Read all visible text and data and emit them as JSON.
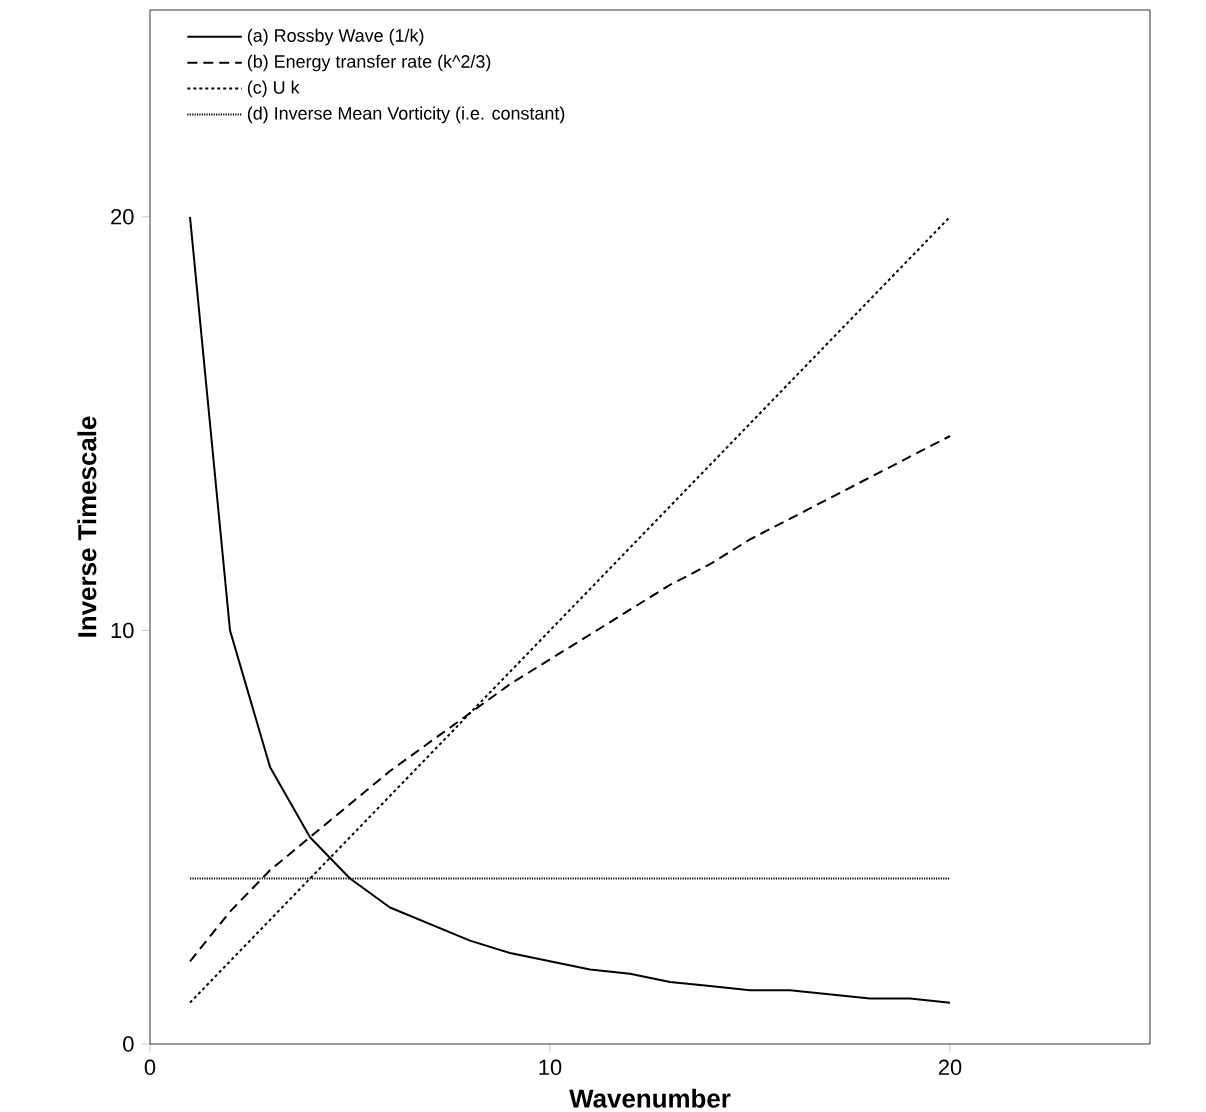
{
  "chart_data": {
    "type": "line",
    "xlabel": "Wavenumber",
    "ylabel": "Inverse Timescale",
    "xlim": [
      0,
      25
    ],
    "ylim": [
      0,
      25
    ],
    "xticks": [
      0,
      10,
      20
    ],
    "yticks": [
      0,
      10,
      20
    ],
    "legend": "top left",
    "grid": false,
    "marker": "none",
    "series": [
      {
        "name": "(a) Rossby Wave (1/k)",
        "color": "#000000",
        "line_style": "solid",
        "x": [
          1,
          2,
          3,
          4,
          5,
          6,
          7,
          8,
          9,
          10,
          11,
          12,
          13,
          14,
          15,
          16,
          17,
          18,
          19,
          20
        ],
        "values": [
          20,
          10,
          6.7,
          5,
          4,
          3.3,
          2.9,
          2.5,
          2.2,
          2,
          1.8,
          1.7,
          1.5,
          1.4,
          1.3,
          1.3,
          1.2,
          1.1,
          1.1,
          1
        ]
      },
      {
        "name": "(b) Energy transfer rate (k^2/3)",
        "color": "#000000",
        "line_style": "dashed",
        "x": [
          1,
          2,
          3,
          4,
          5,
          6,
          7,
          8,
          9,
          10,
          11,
          12,
          13,
          14,
          15,
          16,
          17,
          18,
          19,
          20
        ],
        "values": [
          2,
          3.2,
          4.2,
          5,
          5.8,
          6.6,
          7.3,
          8,
          8.7,
          9.3,
          9.9,
          10.5,
          11.1,
          11.6,
          12.2,
          12.7,
          13.2,
          13.7,
          14.2,
          14.7
        ]
      },
      {
        "name": "(c) U k",
        "color": "#000000",
        "line_style": "dotted",
        "x": [
          1,
          20
        ],
        "values": [
          1,
          20
        ]
      },
      {
        "name": "(d) Inverse Mean Vorticity (i.e. constant)",
        "color": "#000000",
        "line_style": "finely dotted",
        "x": [
          1,
          20
        ],
        "values": [
          4,
          4
        ]
      }
    ]
  }
}
